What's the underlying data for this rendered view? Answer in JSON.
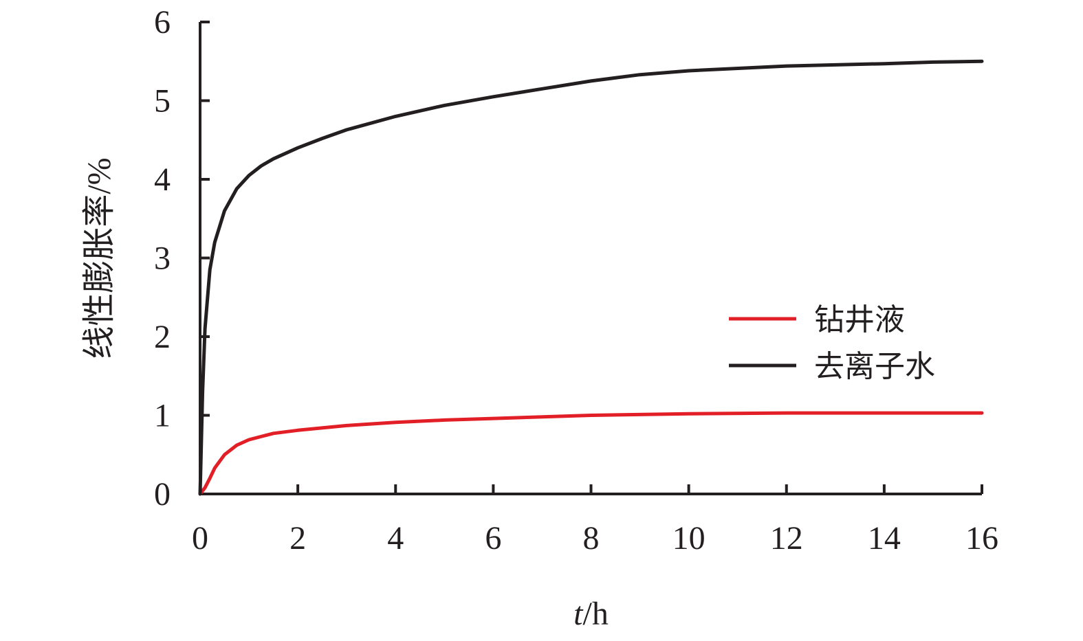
{
  "chart_data": {
    "type": "line",
    "title": "",
    "xlabel_italic": "t",
    "xlabel_rest": "/h",
    "ylabel": "线性膨胀率/%",
    "xlim": [
      0,
      16
    ],
    "ylim": [
      0,
      6
    ],
    "x_ticks": [
      0,
      2,
      4,
      6,
      8,
      10,
      12,
      14,
      16
    ],
    "y_ticks": [
      0,
      1,
      2,
      3,
      4,
      5,
      6
    ],
    "grid": false,
    "legend_position": "right-middle",
    "series": [
      {
        "name": "钻井液",
        "color": "#e21f26",
        "x": [
          0,
          0.1,
          0.2,
          0.3,
          0.5,
          0.75,
          1,
          1.5,
          2,
          3,
          4,
          5,
          6,
          8,
          10,
          12,
          14,
          16
        ],
        "y": [
          0,
          0.08,
          0.2,
          0.33,
          0.5,
          0.62,
          0.69,
          0.77,
          0.81,
          0.87,
          0.91,
          0.94,
          0.96,
          1.0,
          1.02,
          1.03,
          1.03,
          1.03
        ]
      },
      {
        "name": "去离子水",
        "color": "#231f20",
        "x": [
          0,
          0.05,
          0.1,
          0.2,
          0.3,
          0.5,
          0.75,
          1,
          1.25,
          1.5,
          2,
          2.5,
          3,
          4,
          5,
          6,
          7,
          8,
          9,
          10,
          12,
          14,
          15,
          16
        ],
        "y": [
          0,
          1.3,
          2.1,
          2.85,
          3.2,
          3.6,
          3.88,
          4.05,
          4.17,
          4.26,
          4.4,
          4.52,
          4.63,
          4.8,
          4.94,
          5.05,
          5.15,
          5.25,
          5.33,
          5.38,
          5.44,
          5.47,
          5.49,
          5.5
        ]
      }
    ]
  }
}
